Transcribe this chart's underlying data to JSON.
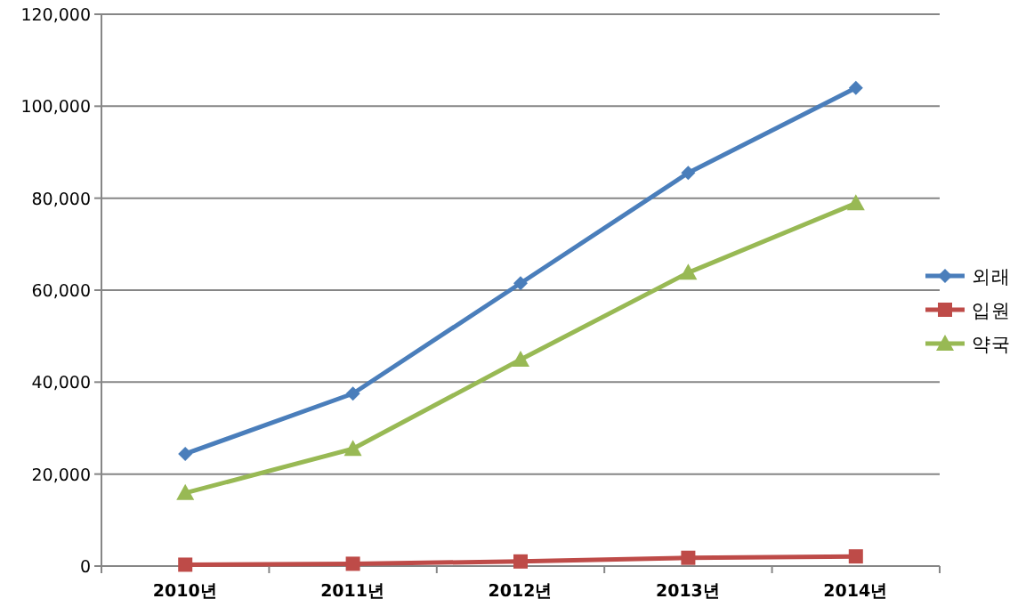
{
  "chart_data": {
    "type": "line",
    "categories": [
      "2010년",
      "2011년",
      "2012년",
      "2013년",
      "2014년"
    ],
    "series": [
      {
        "name": "외래",
        "color": "#4a7ebb",
        "marker": "diamond",
        "values": [
          24400,
          37500,
          61500,
          85500,
          104000
        ]
      },
      {
        "name": "입원",
        "color": "#be4b48",
        "marker": "square",
        "values": [
          300,
          500,
          1000,
          1800,
          2100
        ]
      },
      {
        "name": "약국",
        "color": "#98b954",
        "marker": "triangle",
        "values": [
          15900,
          25500,
          44900,
          63800,
          78900
        ]
      }
    ],
    "ylim": [
      0,
      120000
    ],
    "yticks": [
      {
        "value": 0,
        "label": "0"
      },
      {
        "value": 20000,
        "label": "20,000"
      },
      {
        "value": 40000,
        "label": "40,000"
      },
      {
        "value": 60000,
        "label": "60,000"
      },
      {
        "value": 80000,
        "label": "80,000"
      },
      {
        "value": 100000,
        "label": "100,000"
      },
      {
        "value": 120000,
        "label": "120,000"
      }
    ],
    "grid": "y",
    "legend": "right",
    "line_style": "solid"
  }
}
